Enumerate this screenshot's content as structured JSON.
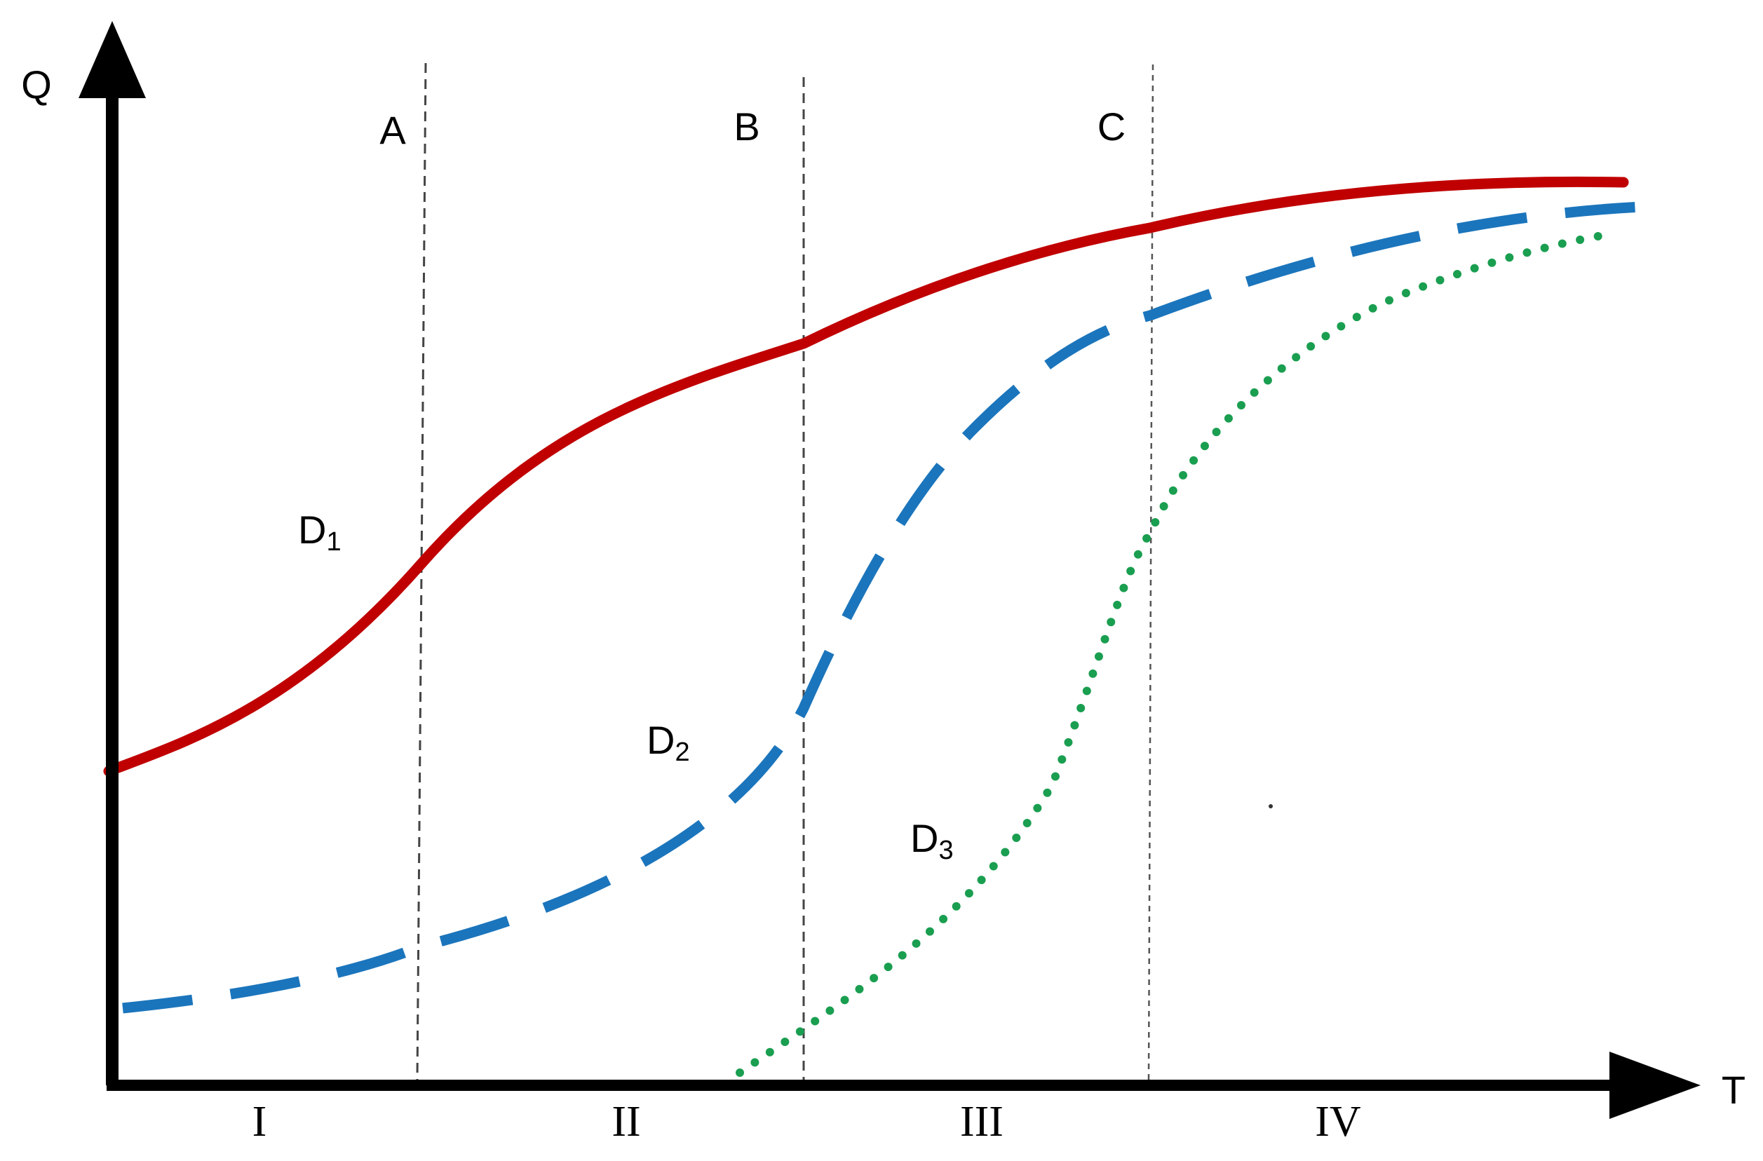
{
  "axes": {
    "y_label": "Q",
    "x_label": "T"
  },
  "boundaries": [
    {
      "label": "A"
    },
    {
      "label": "B"
    },
    {
      "label": "C"
    }
  ],
  "stages": [
    "I",
    "II",
    "III",
    "IV"
  ],
  "curves": [
    {
      "id": "d1",
      "label_main": "D",
      "label_sub": "1",
      "color": "#c00000",
      "style": "solid"
    },
    {
      "id": "d2",
      "label_main": "D",
      "label_sub": "2",
      "color": "#1b75bc",
      "style": "dashed"
    },
    {
      "id": "d3",
      "label_main": "D",
      "label_sub": "3",
      "color": "#1a9e50",
      "style": "dotted"
    }
  ]
}
